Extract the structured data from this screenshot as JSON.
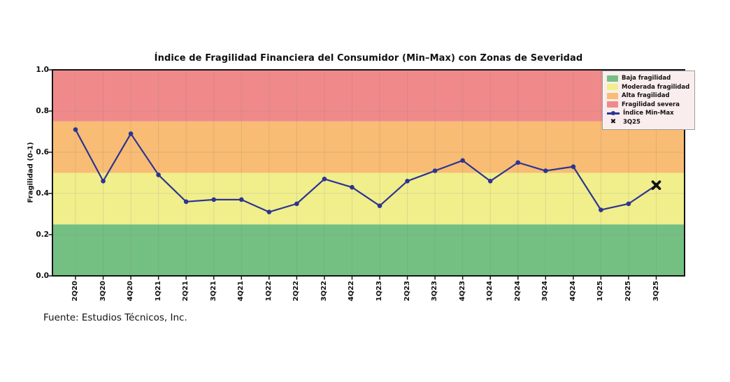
{
  "source_note": "Fuente: Estudios Técnicos, Inc.",
  "chart_data": {
    "type": "line",
    "title": "Índice de Fragilidad Financiera del Consumidor (Min–Max) con Zonas de Severidad",
    "xlabel": "",
    "ylabel": "Fragilidad (0-1)",
    "ylim": [
      0,
      1
    ],
    "ytick_labels": [
      "0.0",
      "0.2",
      "0.4",
      "0.6",
      "0.8",
      "1.0"
    ],
    "grid": true,
    "legend_position": "top-right",
    "categories": [
      "2Q20",
      "3Q20",
      "4Q20",
      "1Q21",
      "2Q21",
      "3Q21",
      "4Q21",
      "1Q22",
      "2Q22",
      "3Q22",
      "4Q22",
      "1Q23",
      "2Q23",
      "3Q23",
      "4Q23",
      "1Q24",
      "2Q24",
      "3Q24",
      "4Q24",
      "1Q25",
      "2Q25",
      "3Q25"
    ],
    "series": [
      {
        "name": "Índice Min-Max",
        "color": "#2C3492",
        "values": [
          0.71,
          0.46,
          0.69,
          0.49,
          0.36,
          0.37,
          0.37,
          0.31,
          0.35,
          0.47,
          0.43,
          0.34,
          0.46,
          0.51,
          0.56,
          0.46,
          0.55,
          0.51,
          0.53,
          0.32,
          0.35,
          0.44
        ]
      }
    ],
    "highlight": {
      "label": "3Q25",
      "category": "3Q25",
      "value": 0.44,
      "marker": "X",
      "color": "#111111"
    },
    "zones": [
      {
        "label": "Baja fragilidad",
        "ymin": 0.0,
        "ymax": 0.25,
        "color": "#74C083"
      },
      {
        "label": "Moderada fragilidad",
        "ymin": 0.25,
        "ymax": 0.5,
        "color": "#F1EE8C"
      },
      {
        "label": "Alta fragilidad",
        "ymin": 0.5,
        "ymax": 0.75,
        "color": "#F8BC74"
      },
      {
        "label": "Fragilidad severa",
        "ymin": 0.75,
        "ymax": 1.0,
        "color": "#F08A8A"
      }
    ]
  }
}
